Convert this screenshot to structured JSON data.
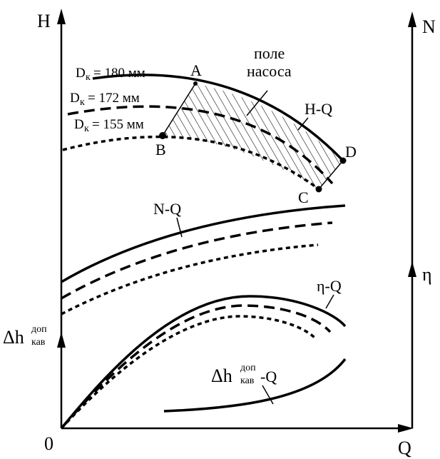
{
  "axes": {
    "h_label": "H",
    "n_label": "N",
    "eta_label": "η",
    "q_label": "Q",
    "origin_label": "0",
    "dh_main": "Δh",
    "dh_sup": "доп",
    "dh_sub": "кав"
  },
  "curve_labels": {
    "hq": "H-Q",
    "nq": "N-Q",
    "etaq": "η-Q",
    "dhq_main": "Δh",
    "dhq_sup": "доп",
    "dhq_sub": "кав",
    "dhq_suffix": "-Q"
  },
  "diameters": [
    {
      "prefix": "D",
      "sub": "к",
      "value": "= 180 мм"
    },
    {
      "prefix": "D",
      "sub": "к",
      "value": "= 172 мм"
    },
    {
      "prefix": "D",
      "sub": "к",
      "value": "= 155 мм"
    }
  ],
  "field_label": {
    "line1": "поле",
    "line2": "насоса"
  },
  "points": {
    "a": "A",
    "b": "B",
    "c": "C",
    "d": "D"
  },
  "line_styles": [
    "solid",
    "long-dash",
    "short-dash"
  ],
  "colors": {
    "ink": "#000000",
    "background": "#ffffff"
  }
}
